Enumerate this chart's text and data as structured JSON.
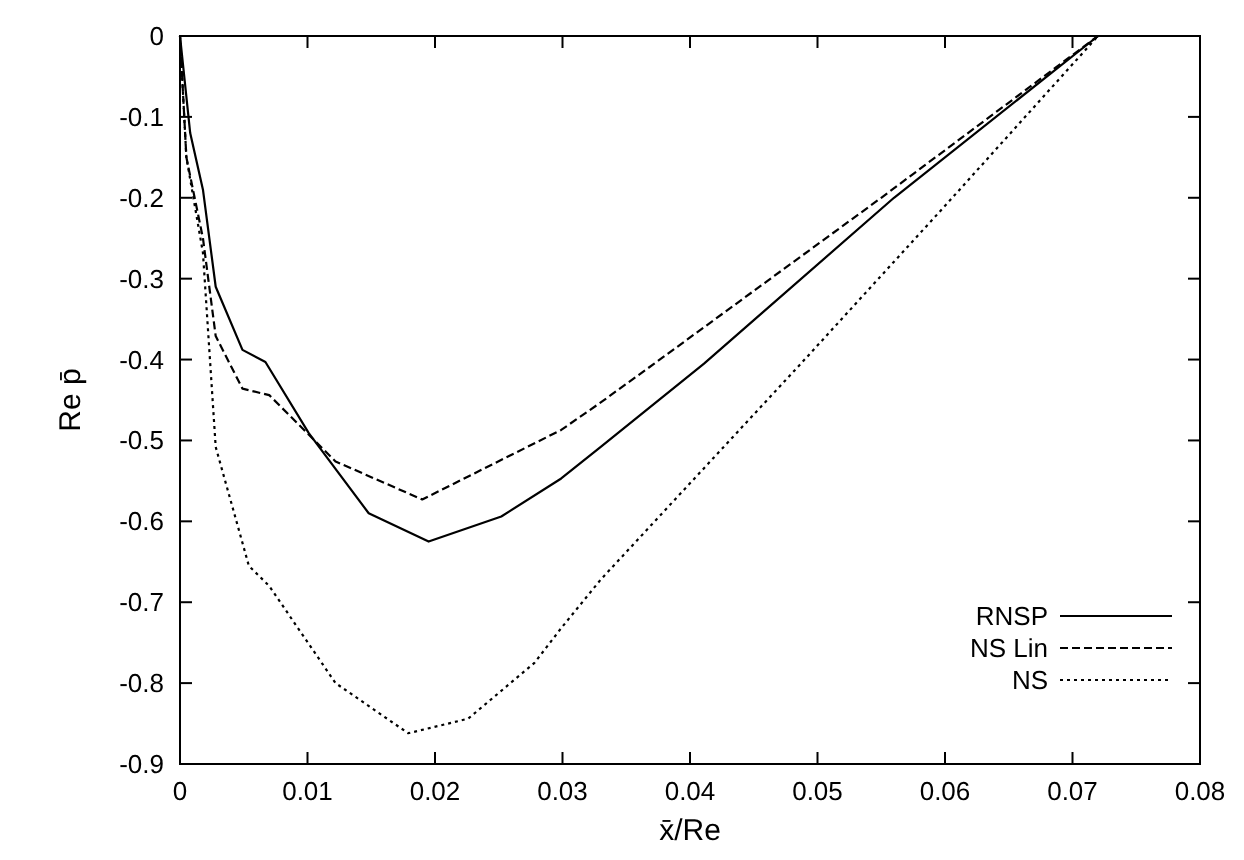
{
  "chart_data": {
    "type": "line",
    "xlabel": "x̄/Re",
    "ylabel": "Re p̄",
    "xlim": [
      0,
      0.08
    ],
    "ylim": [
      -0.9,
      0
    ],
    "xticks": [
      0,
      0.01,
      0.02,
      0.03,
      0.04,
      0.05,
      0.06,
      0.07,
      0.08
    ],
    "yticks": [
      0,
      -0.1,
      -0.2,
      -0.3,
      -0.4,
      -0.5,
      -0.6,
      -0.7,
      -0.8,
      -0.9
    ],
    "grid": false,
    "legend": "bottom right",
    "marker": "none",
    "series": [
      {
        "name": "RNSP",
        "color": "#000000",
        "line_style": "solid",
        "x": [
          0,
          0.0008,
          0.0018,
          0.0028,
          0.0049,
          0.0067,
          0.0101,
          0.0148,
          0.0195,
          0.0252,
          0.0299,
          0.033,
          0.0411,
          0.056,
          0.072
        ],
        "values": [
          0,
          -0.12,
          -0.19,
          -0.31,
          -0.388,
          -0.403,
          -0.491,
          -0.59,
          -0.625,
          -0.594,
          -0.547,
          -0.508,
          -0.405,
          -0.2,
          0
        ]
      },
      {
        "name": "NS Lin",
        "color": "#000000",
        "line_style": "dashed",
        "x": [
          0,
          0.0005,
          0.0018,
          0.0028,
          0.0049,
          0.007,
          0.0122,
          0.019,
          0.0299,
          0.033,
          0.0372,
          0.055,
          0.072
        ],
        "values": [
          0,
          -0.15,
          -0.25,
          -0.371,
          -0.436,
          -0.444,
          -0.526,
          -0.573,
          -0.487,
          -0.453,
          -0.405,
          -0.2,
          0
        ]
      },
      {
        "name": "NS",
        "color": "#000000",
        "line_style": "dotted",
        "x": [
          0,
          0.0005,
          0.0018,
          0.0028,
          0.0054,
          0.007,
          0.0096,
          0.0122,
          0.0179,
          0.0226,
          0.0278,
          0.0299,
          0.033,
          0.0487,
          0.06,
          0.072
        ],
        "values": [
          0,
          -0.15,
          -0.268,
          -0.508,
          -0.655,
          -0.68,
          -0.74,
          -0.8,
          -0.862,
          -0.844,
          -0.775,
          -0.732,
          -0.672,
          -0.405,
          -0.21,
          0
        ]
      }
    ]
  }
}
